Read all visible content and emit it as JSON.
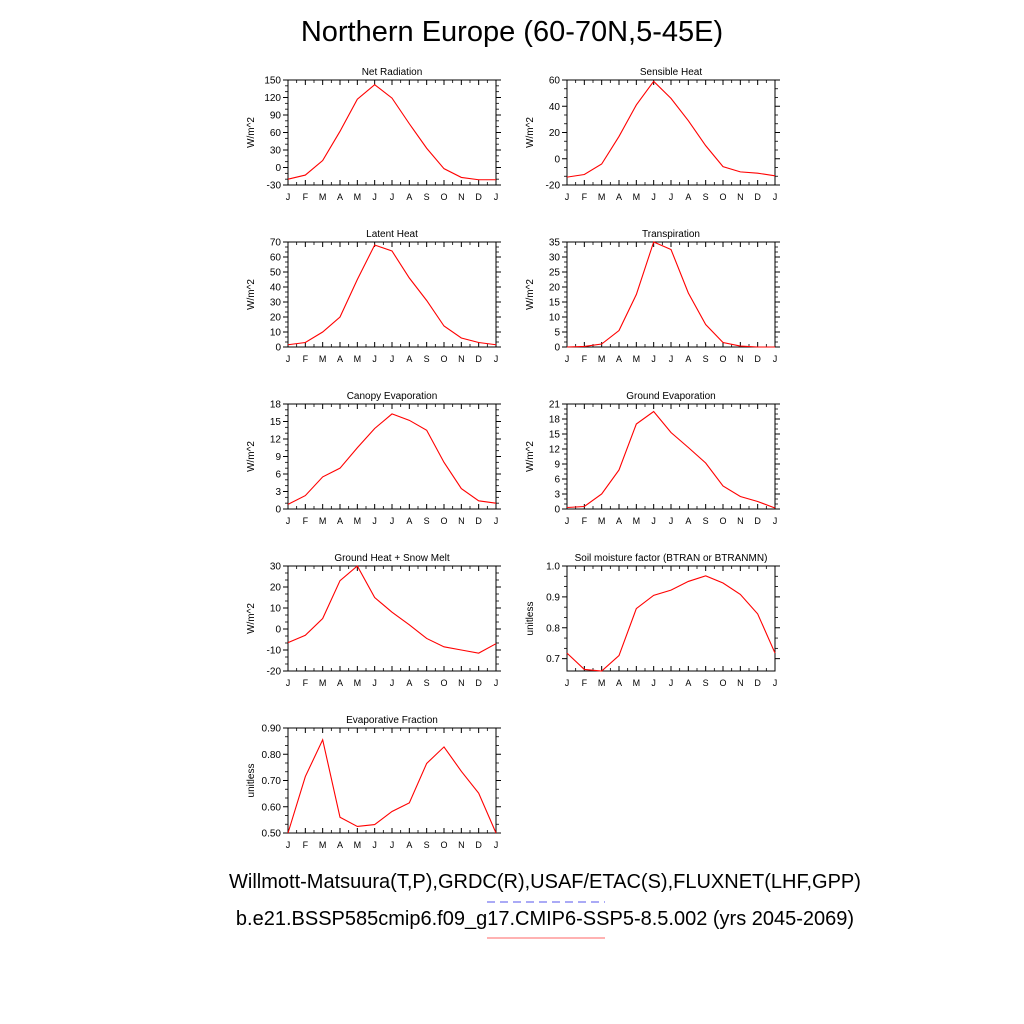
{
  "title": "Northern Europe (60-70N,5-45E)",
  "footer": {
    "obs_line": "Willmott-Matsuura(T,P),GRDC(R),USAF/ETAC(S),FLUXNET(LHF,GPP)",
    "model_line": "b.e21.BSSP585cmip6.f09_g17.CMIP6-SSP5-8.5.002 (yrs 2045-2069)"
  },
  "legend": {
    "obs_color": "#5555ee",
    "model_color": "#ff6666",
    "line_color": "#ff0000"
  },
  "chart_data": [
    {
      "type": "line",
      "title": "Net Radiation",
      "ylabel": "W/m^2",
      "categories": [
        "J",
        "F",
        "M",
        "A",
        "M",
        "J",
        "J",
        "A",
        "S",
        "O",
        "N",
        "D",
        "J"
      ],
      "ylim": [
        -30,
        150
      ],
      "yticks": [
        -30,
        0,
        30,
        60,
        90,
        120,
        150
      ],
      "ytick_labels": [
        "-30",
        "0",
        "30",
        "60",
        "90",
        "120",
        "150"
      ],
      "values": [
        -20,
        -13,
        12,
        62,
        117,
        142,
        119,
        75,
        33,
        -2,
        -17,
        -21,
        -21
      ]
    },
    {
      "type": "line",
      "title": "Sensible Heat",
      "ylabel": "W/m^2",
      "categories": [
        "J",
        "F",
        "M",
        "A",
        "M",
        "J",
        "J",
        "A",
        "S",
        "O",
        "N",
        "D",
        "J"
      ],
      "ylim": [
        -20,
        60
      ],
      "yticks": [
        -20,
        0,
        20,
        40,
        60
      ],
      "ytick_labels": [
        "-20",
        "0",
        "20",
        "40",
        "60"
      ],
      "values": [
        -14,
        -12,
        -4,
        17,
        41,
        59,
        46,
        29,
        10,
        -6,
        -10,
        -11,
        -13
      ]
    },
    {
      "type": "line",
      "title": "Latent Heat",
      "ylabel": "W/m^2",
      "categories": [
        "J",
        "F",
        "M",
        "A",
        "M",
        "J",
        "J",
        "A",
        "S",
        "O",
        "N",
        "D",
        "J"
      ],
      "ylim": [
        0,
        70
      ],
      "yticks": [
        0,
        10,
        20,
        30,
        40,
        50,
        60,
        70
      ],
      "ytick_labels": [
        "0",
        "10",
        "20",
        "30",
        "40",
        "50",
        "60",
        "70"
      ],
      "values": [
        1.5,
        3,
        10,
        20,
        45,
        68,
        64,
        46,
        31,
        14,
        6,
        3,
        1.5
      ]
    },
    {
      "type": "line",
      "title": "Transpiration",
      "ylabel": "W/m^2",
      "categories": [
        "J",
        "F",
        "M",
        "A",
        "M",
        "J",
        "J",
        "A",
        "S",
        "O",
        "N",
        "D",
        "J"
      ],
      "ylim": [
        0,
        35
      ],
      "yticks": [
        0,
        5,
        10,
        15,
        20,
        25,
        30,
        35
      ],
      "ytick_labels": [
        "0",
        "5",
        "10",
        "15",
        "20",
        "25",
        "30",
        "35"
      ],
      "values": [
        0,
        0.2,
        1,
        5.5,
        17.5,
        35,
        32.5,
        18,
        7.5,
        1.5,
        0.3,
        0,
        0
      ]
    },
    {
      "type": "line",
      "title": "Canopy Evaporation",
      "ylabel": "W/m^2",
      "categories": [
        "J",
        "F",
        "M",
        "A",
        "M",
        "J",
        "J",
        "A",
        "S",
        "O",
        "N",
        "D",
        "J"
      ],
      "ylim": [
        0,
        18
      ],
      "yticks": [
        0,
        3,
        6,
        9,
        12,
        15,
        18
      ],
      "ytick_labels": [
        "0",
        "3",
        "6",
        "9",
        "12",
        "15",
        "18"
      ],
      "values": [
        0.8,
        2.3,
        5.5,
        7,
        10.5,
        13.8,
        16.3,
        15.2,
        13.5,
        8,
        3.5,
        1.4,
        1
      ]
    },
    {
      "type": "line",
      "title": "Ground Evaporation",
      "ylabel": "W/m^2",
      "categories": [
        "J",
        "F",
        "M",
        "A",
        "M",
        "J",
        "J",
        "A",
        "S",
        "O",
        "N",
        "D",
        "J"
      ],
      "ylim": [
        0,
        21
      ],
      "yticks": [
        0,
        3,
        6,
        9,
        12,
        15,
        18,
        21
      ],
      "ytick_labels": [
        "0",
        "3",
        "6",
        "9",
        "12",
        "15",
        "18",
        "21"
      ],
      "values": [
        0.3,
        0.5,
        3,
        7.8,
        17,
        19.5,
        15.3,
        12.3,
        9.2,
        4.6,
        2.5,
        1.5,
        0.2
      ]
    },
    {
      "type": "line",
      "title": "Ground Heat + Snow Melt",
      "ylabel": "W/m^2",
      "categories": [
        "J",
        "F",
        "M",
        "A",
        "M",
        "J",
        "J",
        "A",
        "S",
        "O",
        "N",
        "D",
        "J"
      ],
      "ylim": [
        -20,
        30
      ],
      "yticks": [
        -20,
        -10,
        0,
        10,
        20,
        30
      ],
      "ytick_labels": [
        "-20",
        "-10",
        "0",
        "10",
        "20",
        "30"
      ],
      "values": [
        -6.5,
        -3,
        5,
        23,
        30,
        15,
        8,
        2,
        -4.5,
        -8.5,
        -10,
        -11.5,
        -7
      ]
    },
    {
      "type": "line",
      "title": "Soil moisture factor (BTRAN or BTRANMN)",
      "ylabel": "unitless",
      "categories": [
        "J",
        "F",
        "M",
        "A",
        "M",
        "J",
        "J",
        "A",
        "S",
        "O",
        "N",
        "D",
        "J"
      ],
      "ylim": [
        0.66,
        1.0
      ],
      "yticks": [
        0.7,
        0.8,
        0.9,
        1.0
      ],
      "ytick_labels": [
        "0.7",
        "0.8",
        "0.9",
        "1.0"
      ],
      "values": [
        0.718,
        0.665,
        0.66,
        0.71,
        0.862,
        0.905,
        0.922,
        0.95,
        0.968,
        0.945,
        0.908,
        0.845,
        0.718
      ]
    },
    {
      "type": "line",
      "title": "Evaporative Fraction",
      "ylabel": "unitless",
      "categories": [
        "J",
        "F",
        "M",
        "A",
        "M",
        "J",
        "J",
        "A",
        "S",
        "O",
        "N",
        "D",
        "J"
      ],
      "ylim": [
        0.5,
        0.9
      ],
      "yticks": [
        0.5,
        0.6,
        0.7,
        0.8,
        0.9
      ],
      "ytick_labels": [
        "0.50",
        "0.60",
        "0.70",
        "0.80",
        "0.90"
      ],
      "values": [
        0.5,
        0.715,
        0.855,
        0.56,
        0.525,
        0.532,
        0.582,
        0.615,
        0.765,
        0.828,
        0.735,
        0.652,
        0.5
      ]
    }
  ]
}
